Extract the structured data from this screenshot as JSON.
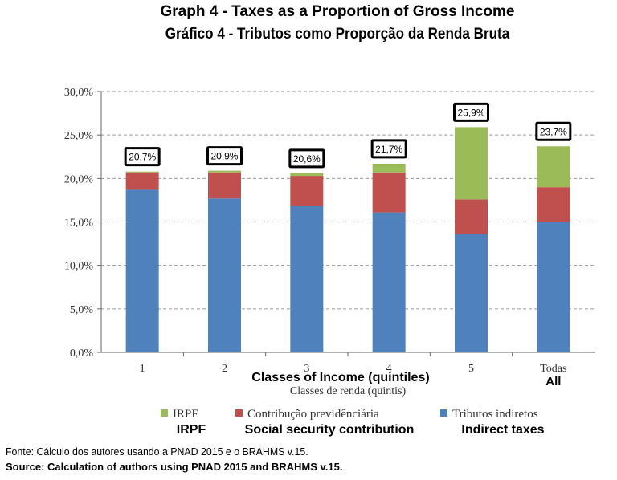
{
  "title": "Graph 4 - Taxes as a Proportion of Gross Income",
  "subtitle": "Gráfico 4 - Tributos como Proporção da Renda Bruta",
  "source_pt": "Fonte: Cálculo dos autores usando a PNAD 2015 e o BRAHMS v.15.",
  "source_en": "Source: Calculation of authors using PNAD 2015 and BRAHMS v.15.",
  "chart_data": {
    "type": "bar",
    "stacked": true,
    "categories": [
      "1",
      "2",
      "3",
      "4",
      "5",
      "Todas"
    ],
    "category_translations": [
      "",
      "",
      "",
      "",
      "",
      "All"
    ],
    "series": [
      {
        "name": "Tributos indiretos",
        "name_en": "Indirect taxes",
        "color": "#4f81bd",
        "values": [
          18.7,
          17.7,
          16.8,
          16.1,
          13.6,
          15.0
        ]
      },
      {
        "name": "Contribução previdênciária",
        "name_en": "Social security contribution",
        "color": "#c0504d",
        "values": [
          2.0,
          3.0,
          3.5,
          4.6,
          4.0,
          4.0
        ]
      },
      {
        "name": "IRPF",
        "name_en": "IRPF",
        "color": "#9bbb59",
        "values": [
          0.1,
          0.2,
          0.3,
          1.0,
          8.3,
          4.7
        ]
      }
    ],
    "totals": [
      "20,7%",
      "20,9%",
      "20,6%",
      "21,7%",
      "25,9%",
      "23,7%"
    ],
    "xlabel": "Classes de renda (quintis)",
    "xlabel_en": "Classes of Income (quintiles)",
    "ylim": [
      0,
      30
    ],
    "yticks": [
      "0,0%",
      "5,0%",
      "10,0%",
      "15,0%",
      "20,0%",
      "25,0%",
      "30,0%"
    ],
    "grid": true,
    "legend_position": "bottom"
  }
}
